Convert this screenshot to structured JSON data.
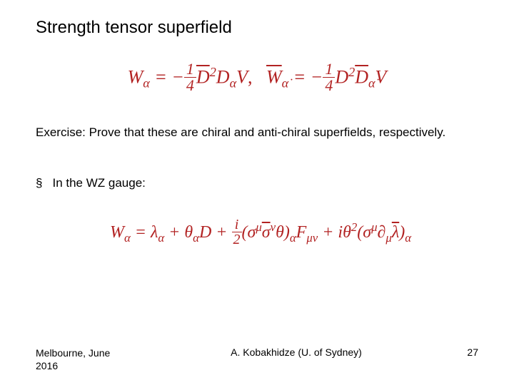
{
  "title": "Strength tensor superfield",
  "exercise_text": "Exercise: Prove that these are chiral and anti-chiral superfields, respectively.",
  "bullet_text": "In the WZ gauge:",
  "footer": {
    "left_line1": "Melbourne, June",
    "left_line2": "2016",
    "center": "A. Kobakhidze (U. of Sydney)",
    "page": "27"
  },
  "colors": {
    "equation": "#b22222",
    "text": "#000000",
    "background": "#ffffff"
  },
  "fonts": {
    "body": "Arial",
    "math": "Times New Roman",
    "title_size_pt": 24,
    "body_size_pt": 17,
    "footer_size_pt": 14,
    "eq1_size_pt": 26,
    "eq2_size_pt": 24
  },
  "equations": {
    "eq1_latex": "W_\\alpha = -\\frac{1}{4}\\bar{D}^2 D_\\alpha V,\\quad \\bar{W}_{\\dot\\alpha} = -\\frac{1}{4} D^2 \\bar{D}_{\\dot\\alpha} V",
    "eq2_latex": "W_\\alpha = \\lambda_\\alpha + \\theta_\\alpha D + \\frac{i}{2}(\\sigma^\\mu \\bar\\sigma^\\nu \\theta)_\\alpha F_{\\mu\\nu} + i\\theta^2(\\sigma^\\mu \\partial_\\mu \\bar\\lambda)_\\alpha"
  }
}
